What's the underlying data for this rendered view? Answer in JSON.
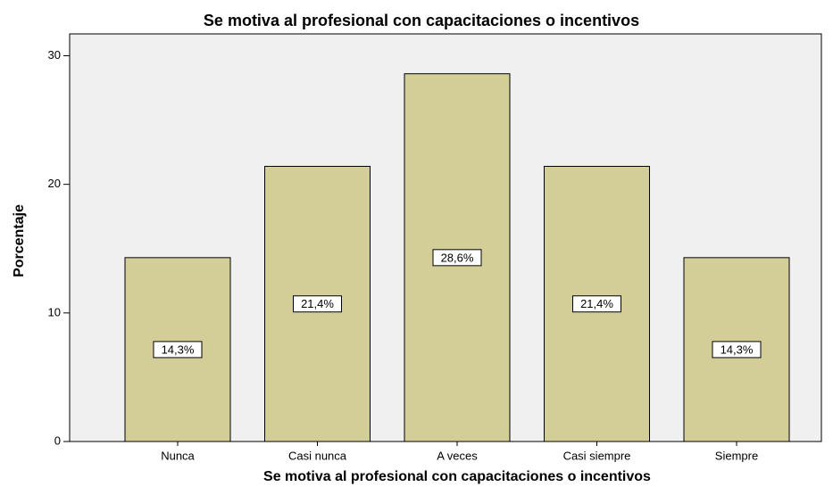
{
  "chart_data": {
    "type": "bar",
    "title": "Se motiva al profesional con capacitaciones o incentivos",
    "x_label": "Se motiva al profesional con capacitaciones o incentivos",
    "y_label": "Porcentaje",
    "categories": [
      "Nunca",
      "Casi nunca",
      "A veces",
      "Casi siempre",
      "Siempre"
    ],
    "values": [
      14.3,
      21.4,
      28.6,
      21.4,
      14.3
    ],
    "value_labels": [
      "14,3%",
      "21,4%",
      "28,6%",
      "21,4%",
      "14,3%"
    ],
    "color": "#d3ce98",
    "ylim": [
      0,
      31.7
    ],
    "yticks": [
      0,
      10,
      20,
      30
    ],
    "grid": false
  }
}
